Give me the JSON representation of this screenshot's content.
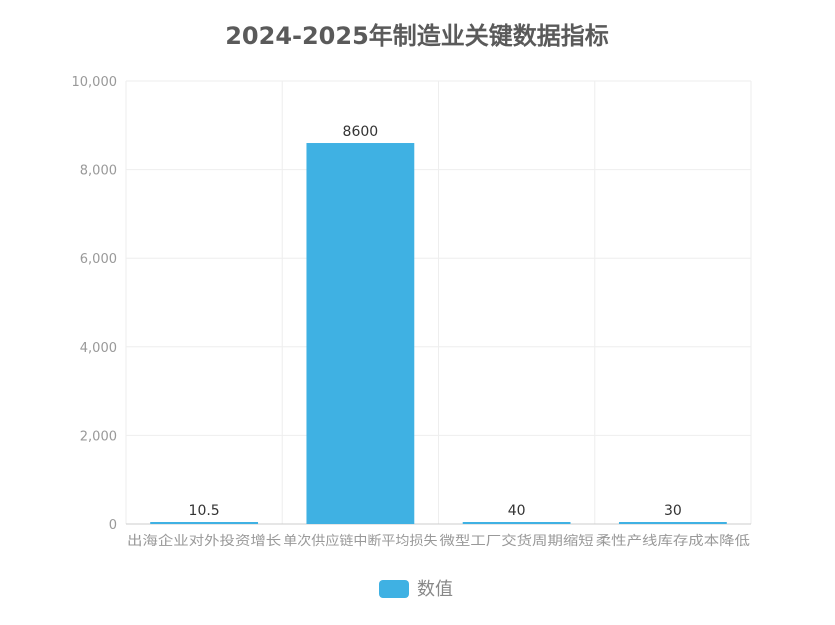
{
  "chart_data": {
    "type": "bar",
    "title": "2024-2025年制造业关键数据指标",
    "categories": [
      "出海企业对外投资增长",
      "单次供应链中断平均损失",
      "微型工厂交货周期缩短",
      "柔性产线库存成本降低"
    ],
    "series": [
      {
        "name": "数值",
        "values": [
          10.5,
          8600,
          40,
          30
        ],
        "labels": [
          "10.5",
          "8600",
          "40",
          "30"
        ]
      }
    ],
    "ylim": [
      0,
      10000
    ],
    "yticks": [
      "0",
      "2,000",
      "4,000",
      "6,000",
      "8,000",
      "10,000"
    ],
    "ytick_values": [
      0,
      2000,
      4000,
      6000,
      8000,
      10000
    ],
    "xlabel": "",
    "ylabel": "",
    "grid": true,
    "legend_position": "bottom-center"
  },
  "colors": {
    "bar": "#3fb1e3",
    "title": "#5a5a5a",
    "axis_text": "#999999",
    "grid": "#eeeeee",
    "axis_line": "#cccccc",
    "data_label": "#333333",
    "legend_text": "#888888"
  }
}
